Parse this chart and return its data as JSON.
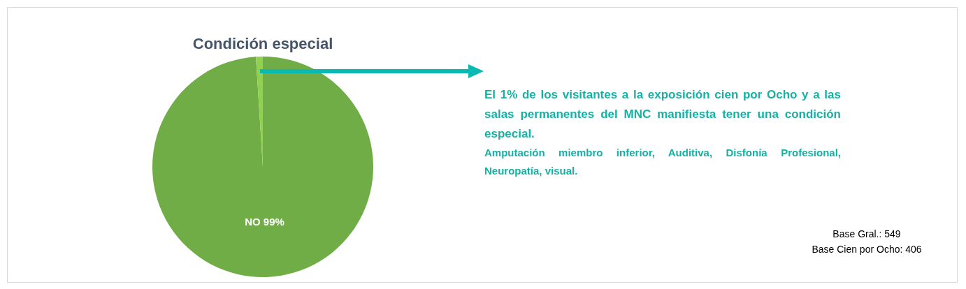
{
  "chart_data": {
    "type": "pie",
    "title": "Condición especial",
    "categories": [
      "NO",
      null
    ],
    "values": [
      99,
      1
    ],
    "colors": [
      "#70ad47",
      "#92d050"
    ],
    "value_labels": [
      "99%",
      null
    ],
    "annotations": [
      "El 1% de los visitantes a la exposición cien por Ocho y a las salas permanentes del MNC manifiesta tener una condición especial.",
      "Amputación miembro inferior, Auditiva, Disfonía Profesional, Neuropatía, visual.",
      "Base Gral.: 549",
      "Base Cien por Ocho: 406"
    ],
    "legend": false
  }
}
